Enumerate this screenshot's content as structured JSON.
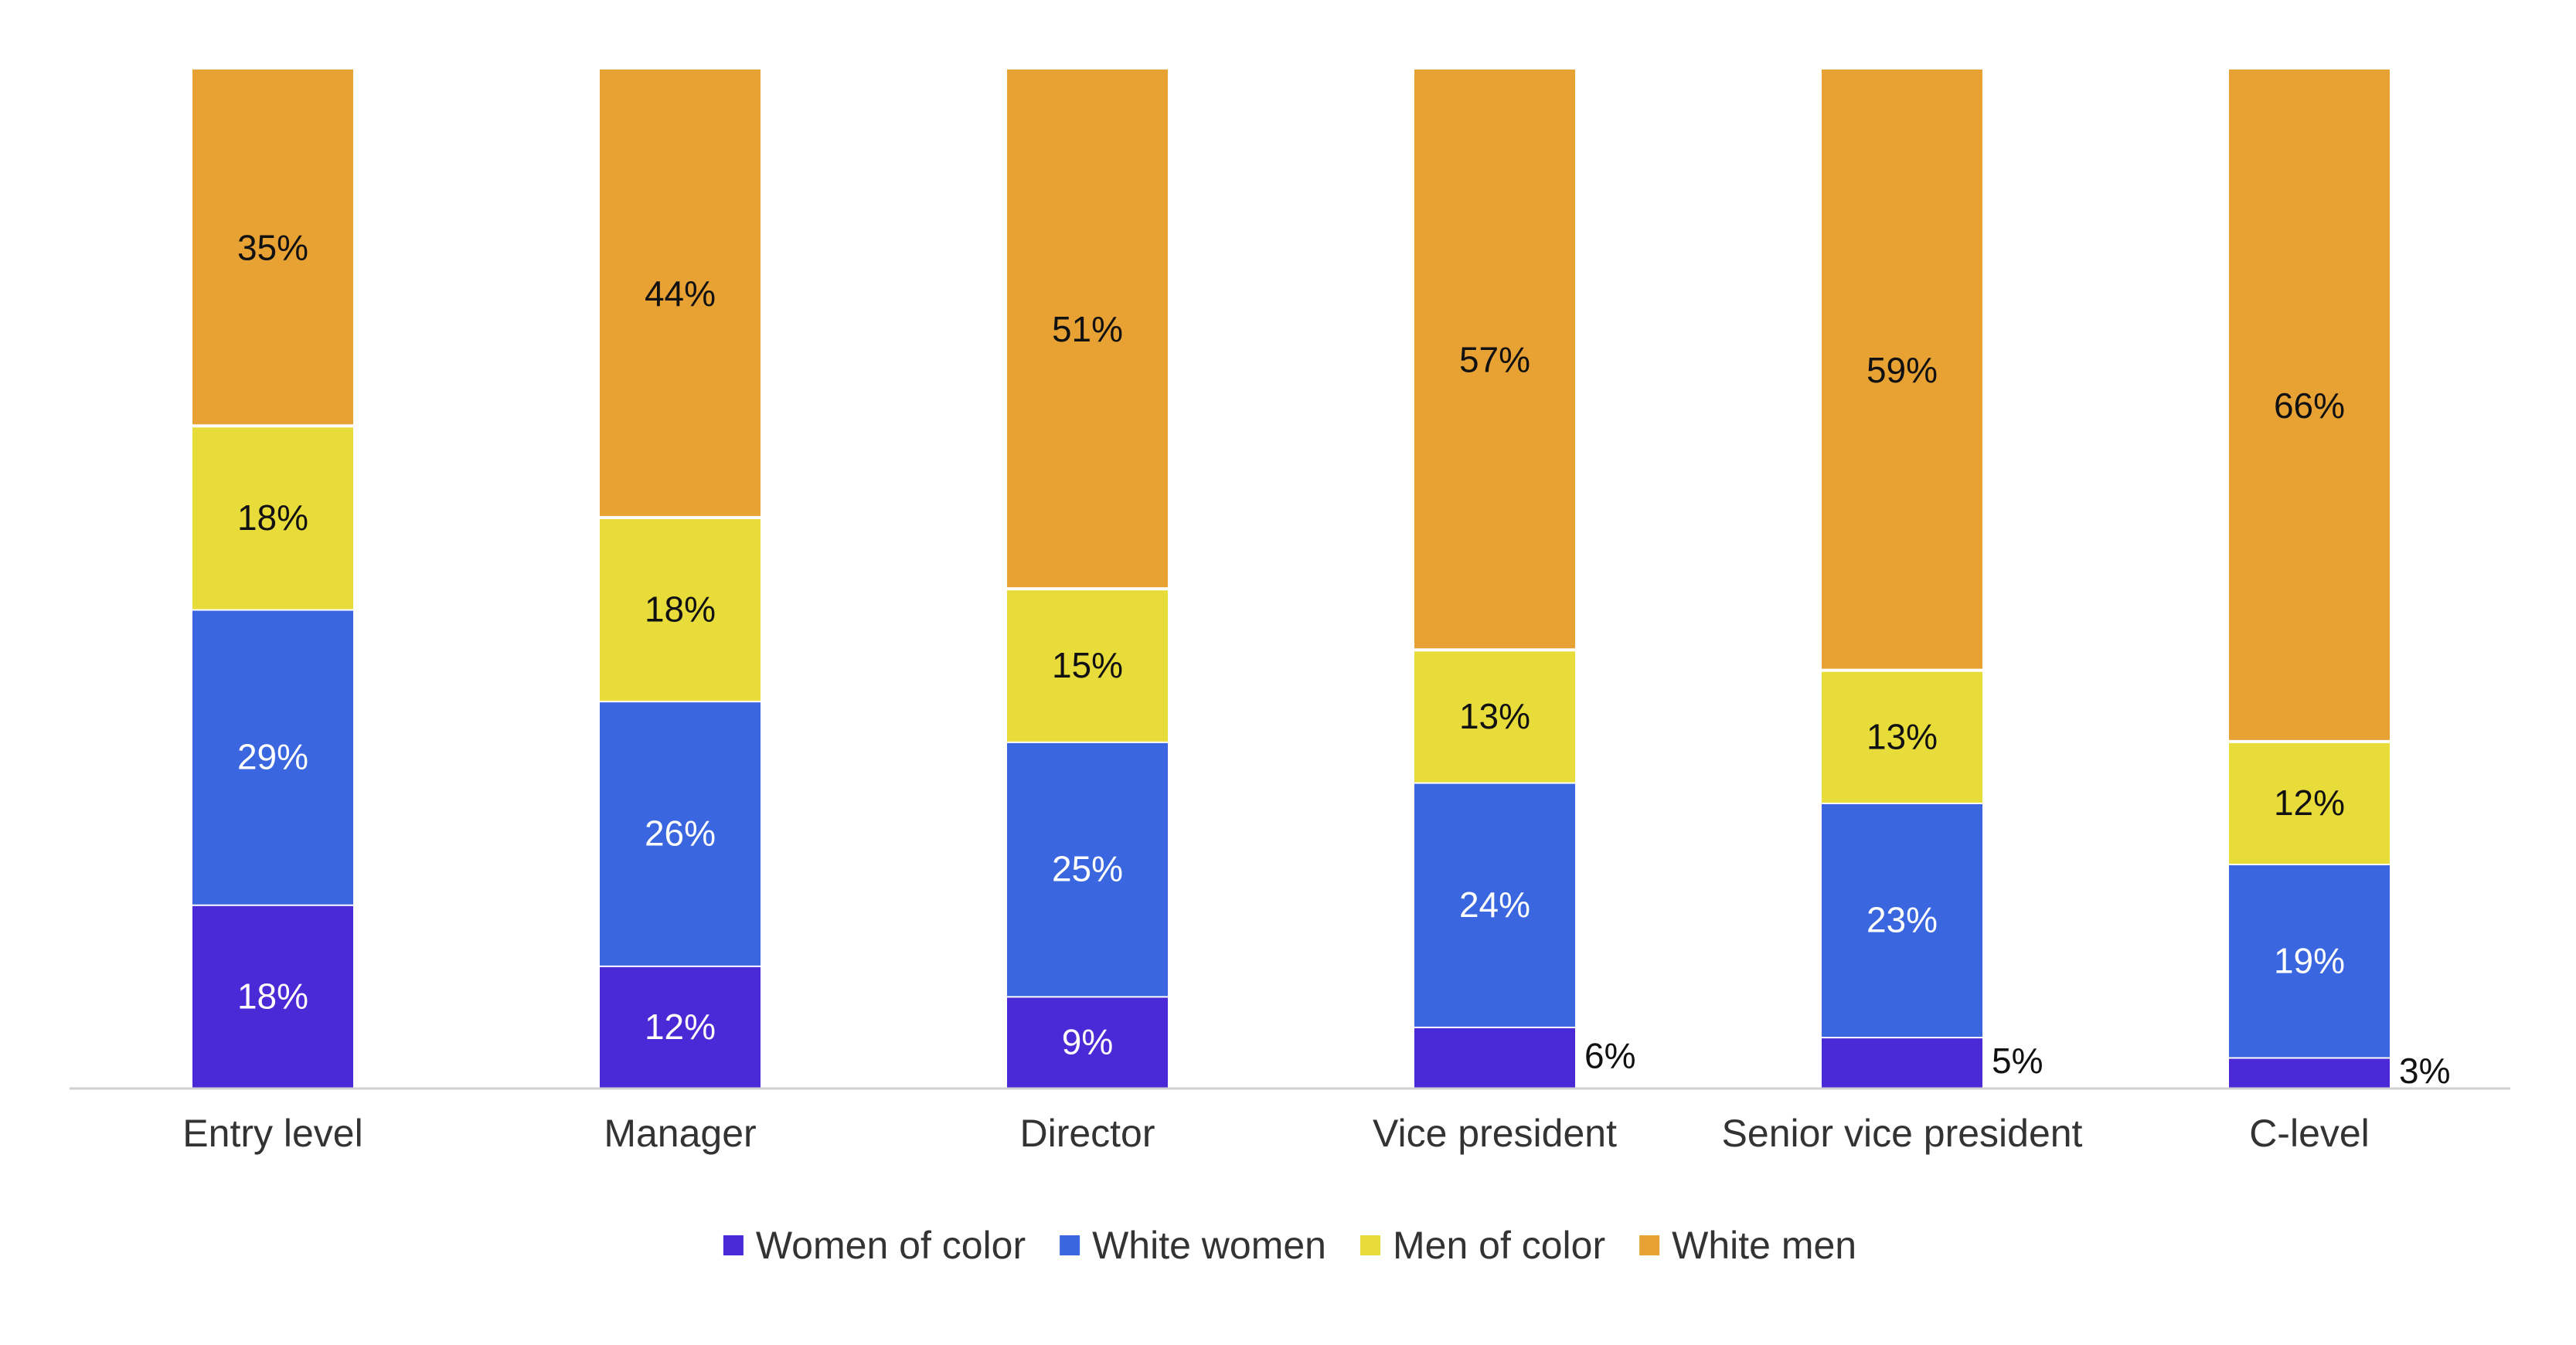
{
  "colors": {
    "women_of_color": "#4a2ad6",
    "white_women": "#3a66df",
    "men_of_color": "#e8dc3b",
    "white_men": "#e8a234",
    "axis": "#d0d0d0"
  },
  "chart_data": {
    "type": "bar",
    "stacked": true,
    "title": "",
    "xlabel": "",
    "ylabel": "",
    "ylim": [
      0,
      100
    ],
    "grid": false,
    "legend_position": "bottom-center",
    "categories": [
      "Entry level",
      "Manager",
      "Director",
      "Vice president",
      "Senior vice president",
      "C-level"
    ],
    "series": [
      {
        "name": "Women of color",
        "color": "#4a2ad6",
        "values": [
          18,
          12,
          9,
          6,
          5,
          3
        ],
        "labels": [
          "18%",
          "12%",
          "9%",
          "6%",
          "5%",
          "3%"
        ]
      },
      {
        "name": "White women",
        "color": "#3a66df",
        "values": [
          29,
          26,
          25,
          24,
          23,
          19
        ],
        "labels": [
          "29%",
          "26%",
          "25%",
          "24%",
          "23%",
          "19%"
        ]
      },
      {
        "name": "Men of color",
        "color": "#e8dc3b",
        "values": [
          18,
          18,
          15,
          13,
          13,
          12
        ],
        "labels": [
          "18%",
          "18%",
          "15%",
          "13%",
          "13%",
          "12%"
        ]
      },
      {
        "name": "White men",
        "color": "#e8a234",
        "values": [
          35,
          44,
          51,
          57,
          59,
          66
        ],
        "labels": [
          "35%",
          "44%",
          "51%",
          "57%",
          "59%",
          "66%"
        ]
      }
    ]
  }
}
